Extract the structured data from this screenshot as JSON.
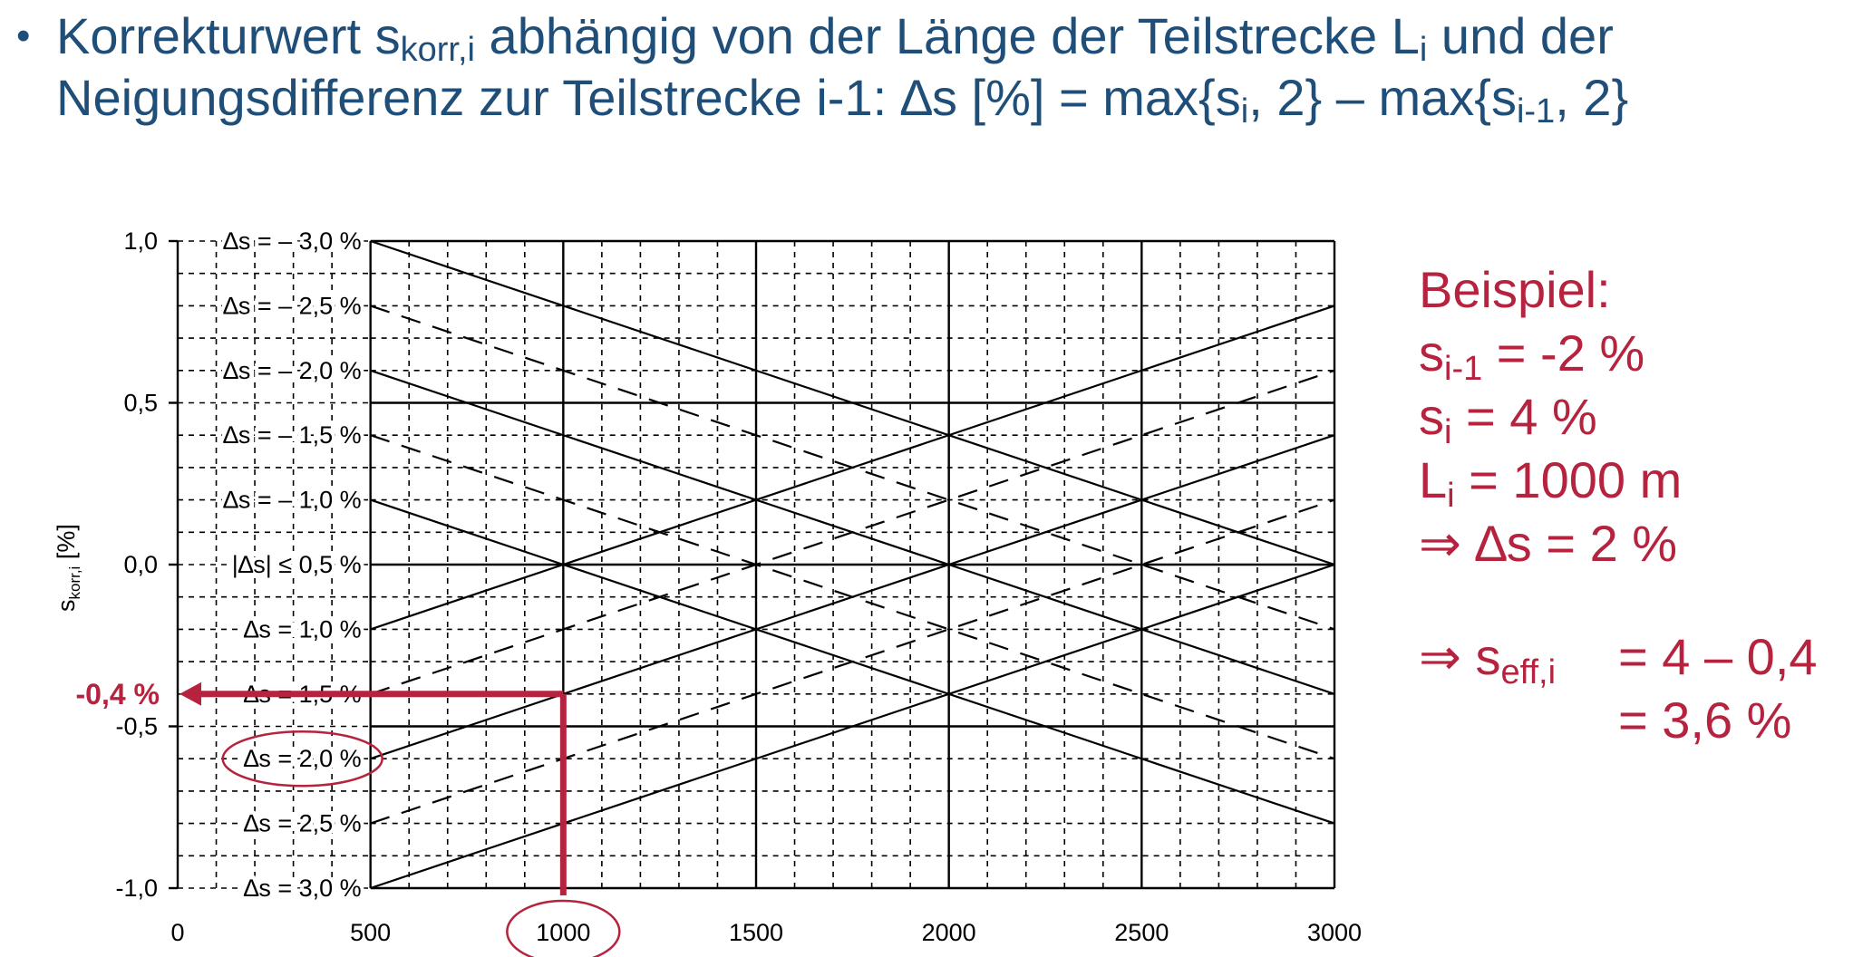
{
  "heading": {
    "bullet": "•",
    "line1_pre": "Korrekturwert s",
    "line1_sub": "korr,i",
    "line1_post": " abhängig von der Länge der Teilstrecke L",
    "line1_sub2": "i",
    "line1_end": " und der",
    "line2_pre": "Neigungsdifferenz zur Teilstrecke i-1: ∆s [%] = max{s",
    "line2_sub": "i",
    "line2_mid": ", 2} – max{s",
    "line2_sub2": "i-1",
    "line2_end": ", 2}"
  },
  "example": {
    "title": "Beispiel:",
    "s_prev_pre": "s",
    "s_prev_sub": "i-1",
    "s_prev_post": " = -2 %",
    "s_i_pre": "s",
    "s_i_sub": "i",
    "s_i_post": " = 4 %",
    "L_pre": "L",
    "L_sub": "i",
    "L_post": " = 1000 m",
    "delta": "⇒ ∆s = 2 %",
    "seff_pre": "⇒ s",
    "seff_sub": "eff,i",
    "seff_eq": "= 4 – 0,4",
    "seff_result": "= 3,6 %"
  },
  "chart_data": {
    "type": "line",
    "xlabel": "",
    "ylabel": "skorr,i [%]",
    "ylabel_main": "s",
    "ylabel_sub": "korr,i",
    "ylabel_unit": "[%]",
    "xlim": [
      0,
      3000
    ],
    "ylim": [
      -1.0,
      1.0
    ],
    "x_ticks": [
      "0",
      "500",
      "1000",
      "1500",
      "2000",
      "2500",
      "3000"
    ],
    "x_tick_values": [
      0,
      500,
      1000,
      1500,
      2000,
      2500,
      3000
    ],
    "y_ticks": [
      "1,0",
      "0,5",
      "0,0",
      "-0,5",
      "-1,0"
    ],
    "y_tick_values": [
      1.0,
      0.5,
      0.0,
      -0.5,
      -1.0
    ],
    "grid": true,
    "series": [
      {
        "name": "∆s = – 3,0 %",
        "y_at_500": 1.0,
        "zero_at_L": 3000,
        "style": "solid"
      },
      {
        "name": "∆s = – 2,5 %",
        "y_at_500": 0.8,
        "zero_at_L": 2500,
        "style": "dashed"
      },
      {
        "name": "∆s = – 2,0 %",
        "y_at_500": 0.6,
        "zero_at_L": 2000,
        "style": "solid"
      },
      {
        "name": "∆s = – 1,5 %",
        "y_at_500": 0.4,
        "zero_at_L": 1500,
        "style": "dashed"
      },
      {
        "name": "∆s = – 1,0 %",
        "y_at_500": 0.2,
        "zero_at_L": 1000,
        "style": "solid"
      },
      {
        "name": "|∆s| ≤ 0,5 %",
        "y_at_500": 0.0,
        "zero_at_L": 500,
        "style": "none"
      },
      {
        "name": "∆s = 1,0 %",
        "y_at_500": -0.2,
        "zero_at_L": 1000,
        "style": "solid"
      },
      {
        "name": "∆s = 1,5 %",
        "y_at_500": -0.4,
        "zero_at_L": 1500,
        "style": "dashed"
      },
      {
        "name": "∆s = 2,0 %",
        "y_at_500": -0.6,
        "zero_at_L": 2000,
        "style": "solid"
      },
      {
        "name": "∆s = 2,5 %",
        "y_at_500": -0.8,
        "zero_at_L": 2500,
        "style": "dashed"
      },
      {
        "name": "∆s = 3,0 %",
        "y_at_500": -1.0,
        "zero_at_L": 3000,
        "style": "solid"
      }
    ],
    "annotations": {
      "example_x": 1000,
      "example_y": -0.4,
      "example_label": "-0,4 %",
      "highlighted_curve": "∆s = 2,0 %",
      "highlighted_tick": "1000"
    },
    "colors": {
      "axis": "#000000",
      "accent": "#b5233f"
    }
  }
}
